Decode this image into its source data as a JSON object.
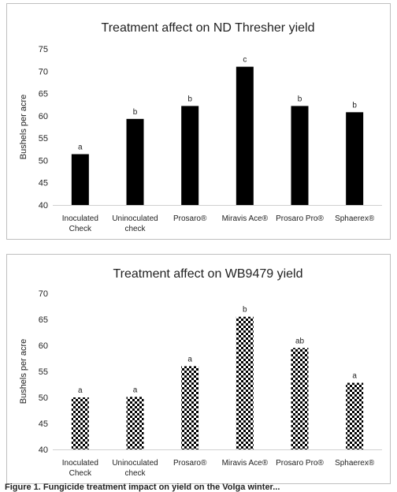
{
  "chart_data": [
    {
      "type": "bar",
      "title": "Treatment affect on ND Thresher yield",
      "ylabel": "Bushels per acre",
      "ylim": [
        40,
        75
      ],
      "yticks": [
        40,
        45,
        50,
        55,
        60,
        65,
        70,
        75
      ],
      "categories": [
        [
          "Inoculated",
          "Check"
        ],
        [
          "Uninoculated",
          "check"
        ],
        [
          "Prosaro®"
        ],
        [
          "Miravis Ace®"
        ],
        [
          "Prosaro Pro®"
        ],
        [
          "Sphaerex®"
        ]
      ],
      "values": [
        51.4,
        59.3,
        62.2,
        71.0,
        62.2,
        60.8
      ],
      "data_labels": [
        "a",
        "b",
        "b",
        "c",
        "b",
        "b"
      ],
      "fill": "solid",
      "bar_color": "#000000"
    },
    {
      "type": "bar",
      "title": "Treatment affect on WB9479 yield",
      "ylabel": "Bushels per acre",
      "ylim": [
        40,
        70
      ],
      "yticks": [
        40,
        45,
        50,
        55,
        60,
        65,
        70
      ],
      "categories": [
        [
          "Inoculated",
          "Check"
        ],
        [
          "Uninoculated",
          "check"
        ],
        [
          "Prosaro®"
        ],
        [
          "Miravis Ace®"
        ],
        [
          "Prosaro Pro®"
        ],
        [
          "Sphaerex®"
        ]
      ],
      "values": [
        50.0,
        50.1,
        56.0,
        65.5,
        59.5,
        52.8
      ],
      "data_labels": [
        "a",
        "a",
        "a",
        "b",
        "ab",
        "a"
      ],
      "fill": "checkerboard",
      "bar_color": "#000000"
    }
  ],
  "caption": "Figure 1. Fungicide treatment impact on yield on the Volga winter..."
}
